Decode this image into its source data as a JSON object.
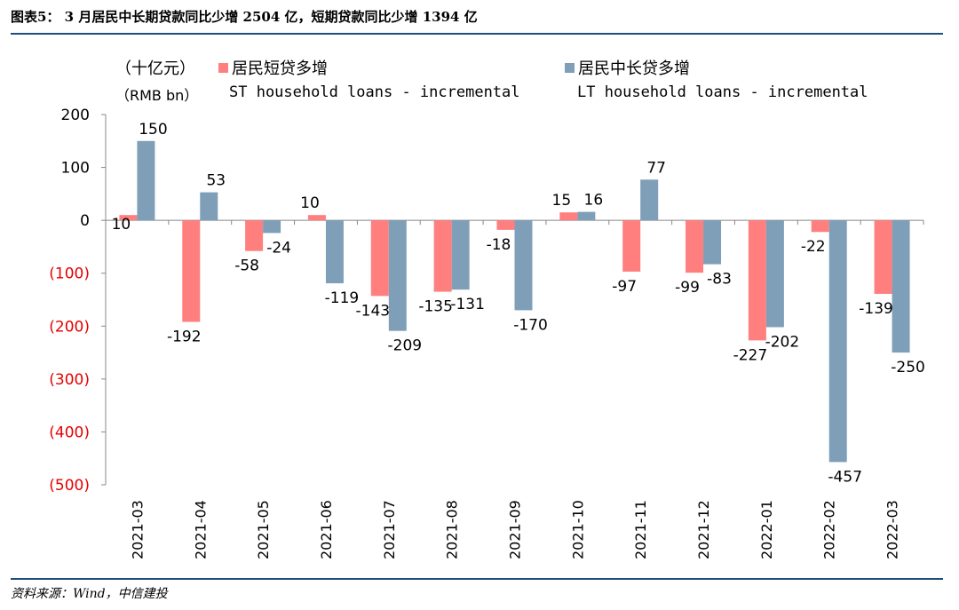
{
  "title": "图表5： 3 月居民中长期贷款同比少增 2504 亿，短期贷款同比少增 1394 亿",
  "source": "资料来源：Wind，中信建投",
  "unit": {
    "cn": "（十亿元）",
    "en": "（RMB bn）"
  },
  "colors": {
    "st": "#ff7f7f",
    "lt": "#7f9fb8",
    "axis": "#888888",
    "negative_tick": "#e60000",
    "rule": "#1f4e79"
  },
  "chart_data": {
    "type": "bar",
    "categories": [
      "2021-03",
      "2021-04",
      "2021-05",
      "2021-06",
      "2021-07",
      "2021-08",
      "2021-09",
      "2021-10",
      "2021-11",
      "2021-12",
      "2022-01",
      "2022-02",
      "2022-03"
    ],
    "series": [
      {
        "name": "居民短贷多增",
        "name_en": "ST household loans - incremental",
        "values": [
          10,
          -192,
          -58,
          10,
          -143,
          -135,
          -18,
          15,
          -97,
          -99,
          -227,
          -22,
          -139
        ]
      },
      {
        "name": "居民中长贷多增",
        "name_en": "LT household loans - incremental",
        "values": [
          150,
          53,
          -24,
          -119,
          -209,
          -131,
          -170,
          16,
          77,
          -83,
          -202,
          -457,
          -250
        ]
      }
    ],
    "ylim": [
      -500,
      200
    ],
    "yticks": [
      200,
      100,
      0,
      -100,
      -200,
      -300,
      -400,
      -500
    ],
    "ytick_labels": [
      "200",
      "100",
      "0",
      "(100)",
      "(200)",
      "(300)",
      "(400)",
      "(500)"
    ],
    "data_labels": {
      "st": [
        "10",
        "-192",
        "-58",
        "10",
        "-143",
        "-135",
        "-18",
        "15",
        "-97",
        "-99",
        "-227",
        "-22",
        "-139"
      ],
      "lt": [
        "150",
        "53",
        "-24",
        "-119",
        "-209",
        "-131",
        "-170",
        "16",
        "77",
        "-83",
        "-202",
        "-457",
        "-250"
      ]
    },
    "legend": "top"
  }
}
